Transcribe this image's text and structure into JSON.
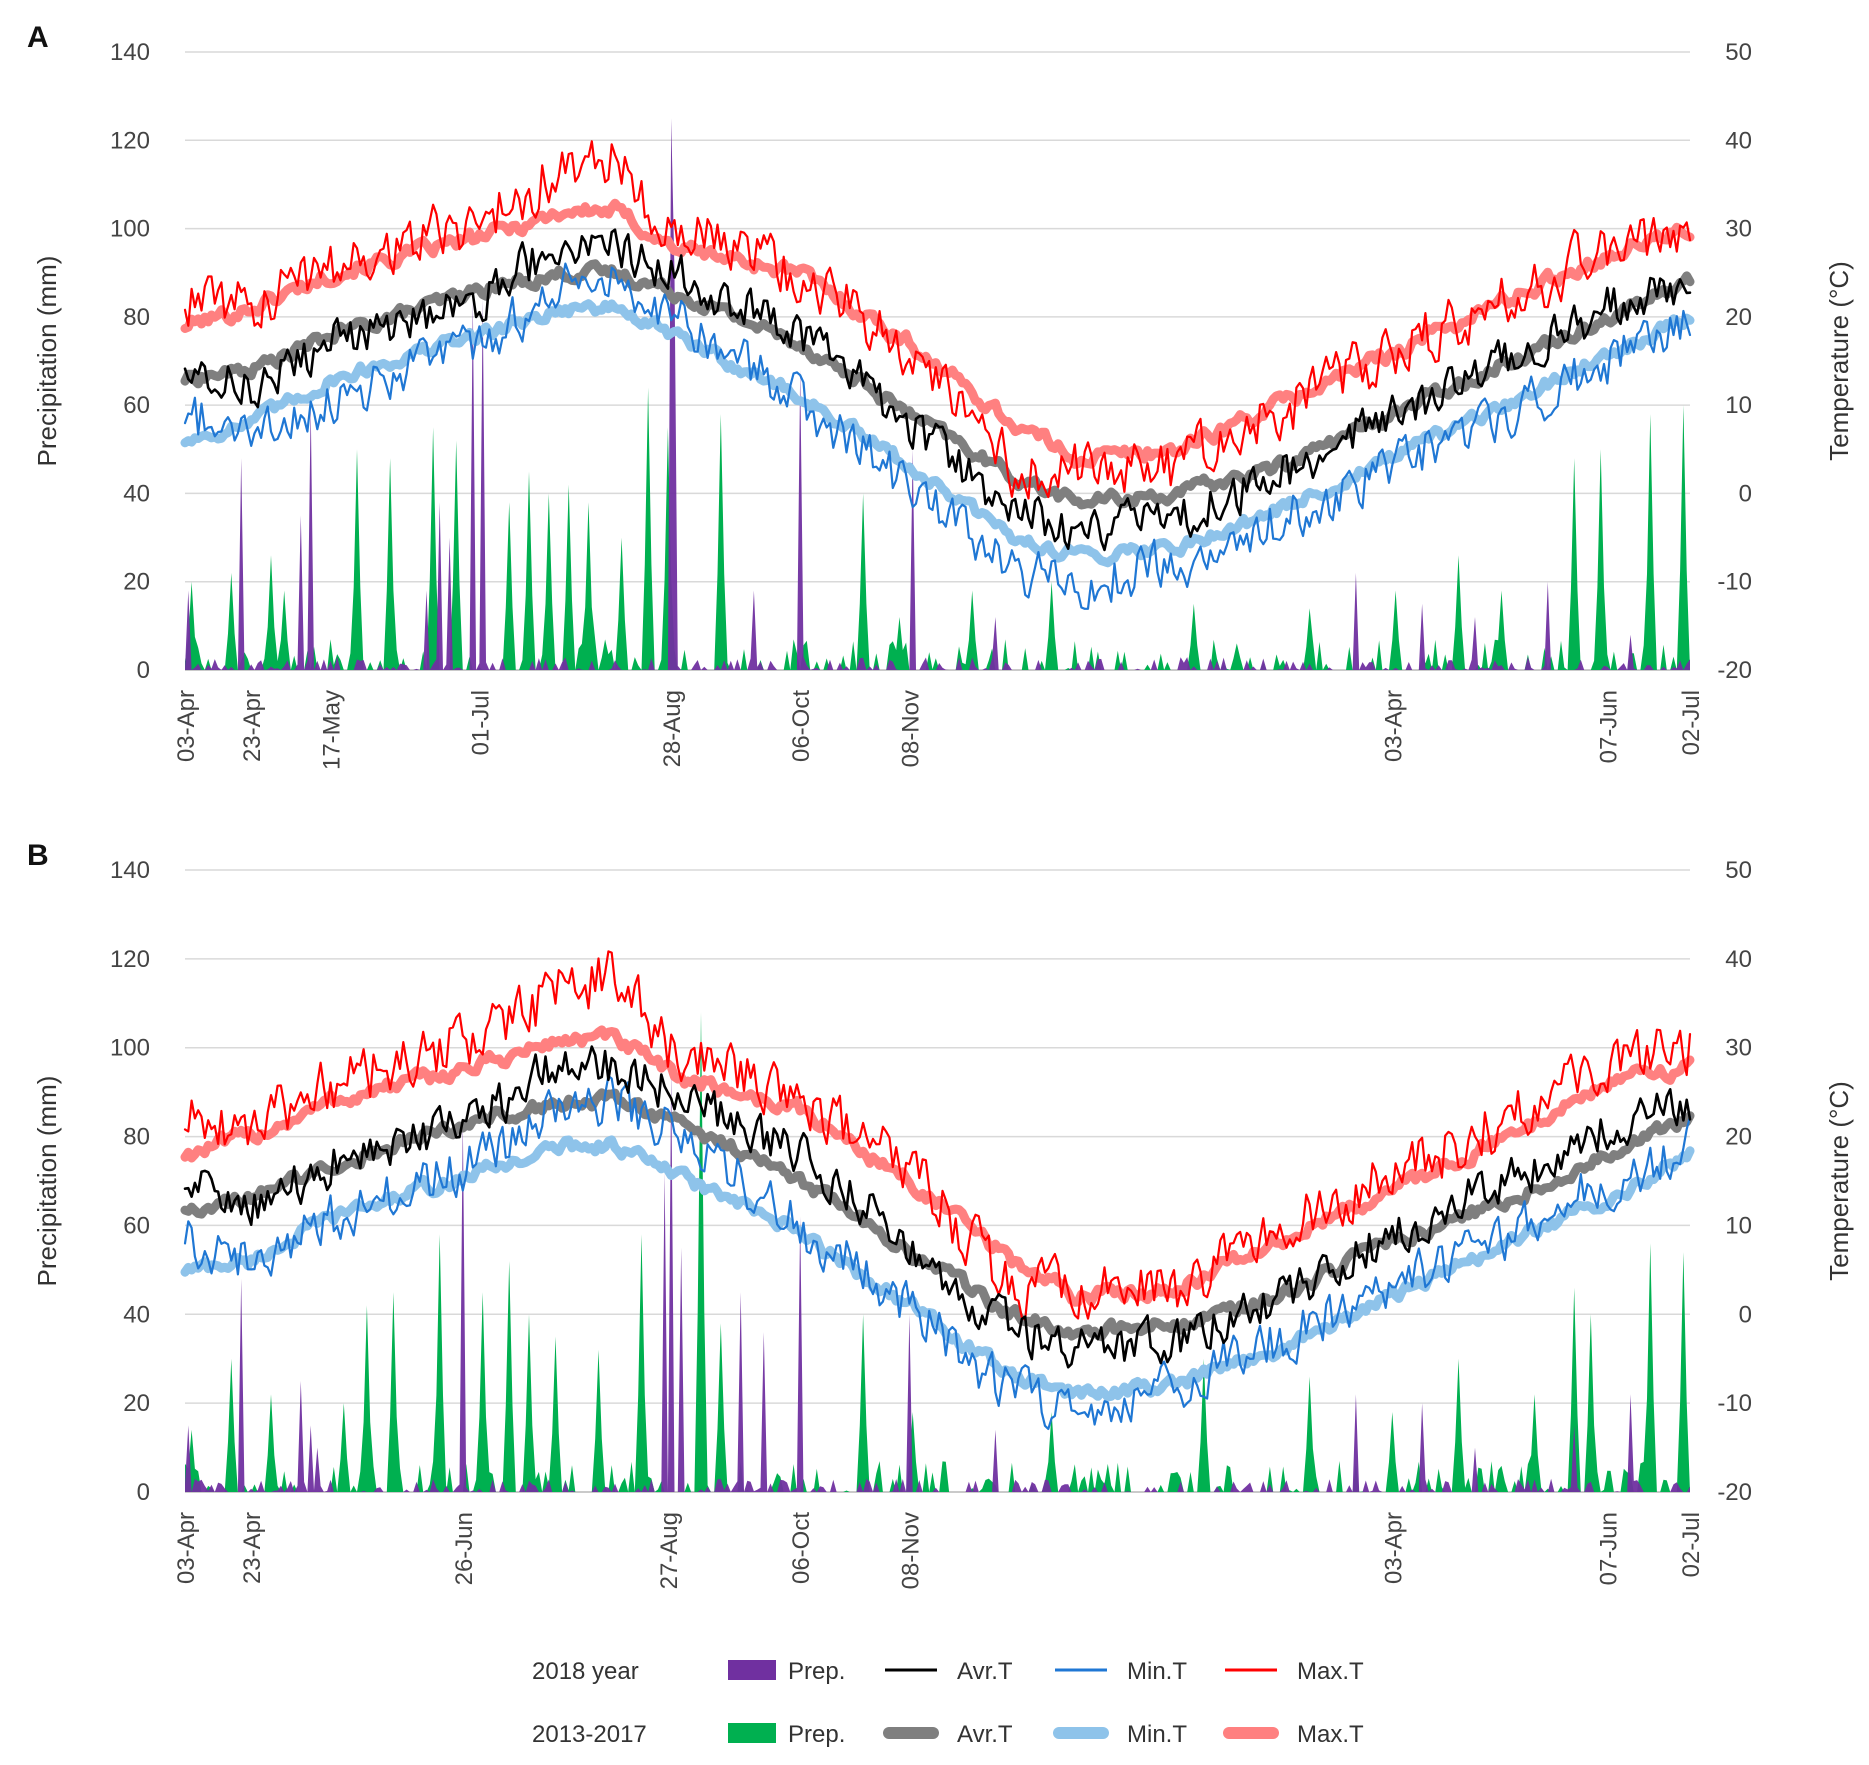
{
  "colors": {
    "prep_2018": "#7030a0",
    "prep_avg": "#00b050",
    "avg_2018": "#000000",
    "avg_avg": "#7f7f7f",
    "min_2018": "#1f77d4",
    "min_avg": "#8ec3ea",
    "max_2018": "#ff0000",
    "max_avg": "#ff8080",
    "grid": "#d9d9d9"
  },
  "legend": {
    "rows": [
      {
        "label": "2018 year",
        "items": [
          {
            "label": "Prep.",
            "key": "prep_2018",
            "kind": "box"
          },
          {
            "label": "Avr.T",
            "key": "avg_2018",
            "kind": "line"
          },
          {
            "label": "Min.T",
            "key": "min_2018",
            "kind": "line"
          },
          {
            "label": "Max.T",
            "key": "max_2018",
            "kind": "line"
          }
        ]
      },
      {
        "label": "2013-2017",
        "items": [
          {
            "label": "Prep.",
            "key": "prep_avg",
            "kind": "box"
          },
          {
            "label": "Avr.T",
            "key": "avg_avg",
            "kind": "thick"
          },
          {
            "label": "Min.T",
            "key": "min_avg",
            "kind": "thick"
          },
          {
            "label": "Max.T",
            "key": "max_avg",
            "kind": "thick"
          }
        ]
      }
    ]
  },
  "chart_data": [
    {
      "panel": "A",
      "type": "line",
      "ylabel": "Precipitation (mm)",
      "y2label": "Temperature (°C)",
      "ylim": [
        0,
        140
      ],
      "y2lim": [
        -20,
        50
      ],
      "yticks": [
        0,
        20,
        40,
        60,
        80,
        100,
        120,
        140
      ],
      "y2ticks": [
        -20,
        -10,
        0,
        10,
        20,
        30,
        40,
        50
      ],
      "grid": true,
      "x_range_days": [
        0,
        455
      ],
      "x_ticks": [
        {
          "label": "03-Apr",
          "day": 0
        },
        {
          "label": "23-Apr",
          "day": 20
        },
        {
          "label": "17-May",
          "day": 44
        },
        {
          "label": "01-Jul",
          "day": 89
        },
        {
          "label": "28-Aug",
          "day": 147
        },
        {
          "label": "06-Oct",
          "day": 186
        },
        {
          "label": "08-Nov",
          "day": 219
        },
        {
          "label": "03-Apr",
          "day": 365
        },
        {
          "label": "07-Jun",
          "day": 430
        },
        {
          "label": "02-Jul",
          "day": 455
        }
      ],
      "temperature": {
        "days": [
          0,
          20,
          45,
          89,
          115,
          130,
          147,
          186,
          219,
          250,
          270,
          300,
          330,
          365,
          400,
          430,
          455
        ],
        "avg_2018": [
          15,
          12,
          17,
          22,
          29,
          28,
          25,
          18,
          8,
          -2,
          -4,
          -3,
          2,
          9,
          15,
          21,
          24
        ],
        "avg_2013_2017": [
          13,
          14,
          18,
          23,
          25,
          25,
          23,
          17,
          9,
          2,
          -1,
          0,
          3,
          9,
          15,
          20,
          24
        ],
        "min_2018": [
          9,
          6,
          11,
          17,
          24,
          24,
          21,
          10,
          1,
          -9,
          -10,
          -8,
          -3,
          3,
          9,
          15,
          19
        ],
        "min_2013_2017": [
          6,
          8,
          13,
          18,
          21,
          21,
          18,
          11,
          3,
          -5,
          -7,
          -6,
          -2,
          4,
          10,
          16,
          20
        ],
        "max_2018": [
          22,
          21,
          26,
          31,
          37,
          38,
          30,
          25,
          16,
          3,
          3,
          3,
          9,
          16,
          22,
          28,
          30
        ],
        "max_2013_2017": [
          19,
          21,
          25,
          29,
          32,
          32,
          28,
          25,
          17,
          8,
          4,
          5,
          10,
          16,
          22,
          27,
          30
        ]
      },
      "precipitation_2018_peaks": [
        {
          "day": 1,
          "value": 18
        },
        {
          "day": 17,
          "value": 48
        },
        {
          "day": 35,
          "value": 35
        },
        {
          "day": 38,
          "value": 60
        },
        {
          "day": 73,
          "value": 18
        },
        {
          "day": 77,
          "value": 38
        },
        {
          "day": 80,
          "value": 30
        },
        {
          "day": 87,
          "value": 84
        },
        {
          "day": 90,
          "value": 84
        },
        {
          "day": 147,
          "value": 125
        },
        {
          "day": 148,
          "value": 90
        },
        {
          "day": 172,
          "value": 18
        },
        {
          "day": 186,
          "value": 68
        },
        {
          "day": 220,
          "value": 50
        },
        {
          "day": 245,
          "value": 12
        },
        {
          "day": 354,
          "value": 22
        },
        {
          "day": 374,
          "value": 15
        },
        {
          "day": 390,
          "value": 12
        },
        {
          "day": 412,
          "value": 20
        },
        {
          "day": 437,
          "value": 8
        }
      ],
      "precipitation_2013_2017_peaks": [
        {
          "day": 2,
          "value": 20
        },
        {
          "day": 14,
          "value": 22
        },
        {
          "day": 26,
          "value": 26
        },
        {
          "day": 30,
          "value": 18
        },
        {
          "day": 52,
          "value": 50
        },
        {
          "day": 62,
          "value": 48
        },
        {
          "day": 75,
          "value": 55
        },
        {
          "day": 82,
          "value": 52
        },
        {
          "day": 98,
          "value": 38
        },
        {
          "day": 104,
          "value": 45
        },
        {
          "day": 110,
          "value": 40
        },
        {
          "day": 116,
          "value": 42
        },
        {
          "day": 122,
          "value": 38
        },
        {
          "day": 132,
          "value": 30
        },
        {
          "day": 140,
          "value": 64
        },
        {
          "day": 146,
          "value": 55
        },
        {
          "day": 162,
          "value": 58
        },
        {
          "day": 205,
          "value": 40
        },
        {
          "day": 216,
          "value": 12
        },
        {
          "day": 238,
          "value": 18
        },
        {
          "day": 262,
          "value": 20
        },
        {
          "day": 305,
          "value": 15
        },
        {
          "day": 340,
          "value": 14
        },
        {
          "day": 366,
          "value": 18
        },
        {
          "day": 385,
          "value": 26
        },
        {
          "day": 398,
          "value": 18
        },
        {
          "day": 420,
          "value": 48
        },
        {
          "day": 428,
          "value": 50
        },
        {
          "day": 443,
          "value": 58
        },
        {
          "day": 453,
          "value": 60
        }
      ]
    },
    {
      "panel": "B",
      "type": "line",
      "ylabel": "Precipitation (mm)",
      "y2label": "Temperature (°C)",
      "ylim": [
        0,
        140
      ],
      "y2lim": [
        -20,
        50
      ],
      "yticks": [
        0,
        20,
        40,
        60,
        80,
        100,
        120,
        140
      ],
      "y2ticks": [
        -20,
        -10,
        0,
        10,
        20,
        30,
        40,
        50
      ],
      "grid": true,
      "x_range_days": [
        0,
        455
      ],
      "x_ticks": [
        {
          "label": "03-Apr",
          "day": 0
        },
        {
          "label": "23-Apr",
          "day": 20
        },
        {
          "label": "26-Jun",
          "day": 84
        },
        {
          "label": "27-Aug",
          "day": 146
        },
        {
          "label": "06-Oct",
          "day": 186
        },
        {
          "label": "08-Nov",
          "day": 219
        },
        {
          "label": "03-Apr",
          "day": 365
        },
        {
          "label": "07-Jun",
          "day": 430
        },
        {
          "label": "02-Jul",
          "day": 455
        }
      ],
      "temperature": {
        "days": [
          0,
          20,
          45,
          89,
          115,
          130,
          147,
          186,
          219,
          250,
          270,
          300,
          330,
          365,
          400,
          430,
          455
        ],
        "avg_2018": [
          15,
          12,
          17,
          22,
          29,
          28,
          25,
          18,
          8,
          -2,
          -4,
          -3,
          2,
          9,
          15,
          21,
          24
        ],
        "avg_2013_2017": [
          12,
          13,
          17,
          22,
          24,
          24,
          22,
          15,
          7,
          0,
          -2,
          -1,
          2,
          8,
          13,
          18,
          22
        ],
        "min_2018": [
          9,
          6,
          11,
          17,
          24,
          24,
          21,
          10,
          1,
          -9,
          -10,
          -8,
          -3,
          3,
          9,
          15,
          19
        ],
        "min_2013_2017": [
          5,
          6,
          11,
          16,
          19,
          19,
          16,
          9,
          1,
          -7,
          -9,
          -8,
          -4,
          2,
          8,
          13,
          18
        ],
        "max_2018": [
          22,
          21,
          26,
          31,
          37,
          38,
          30,
          25,
          16,
          3,
          3,
          3,
          9,
          16,
          22,
          28,
          30
        ],
        "max_2013_2017": [
          18,
          20,
          24,
          28,
          31,
          31,
          27,
          23,
          15,
          6,
          2,
          3,
          8,
          14,
          20,
          26,
          28
        ]
      },
      "precipitation_2018_peaks": [
        {
          "day": 1,
          "value": 15
        },
        {
          "day": 17,
          "value": 48
        },
        {
          "day": 35,
          "value": 25
        },
        {
          "day": 38,
          "value": 15
        },
        {
          "day": 40,
          "value": 10
        },
        {
          "day": 84,
          "value": 84
        },
        {
          "day": 145,
          "value": 72
        },
        {
          "day": 147,
          "value": 95
        },
        {
          "day": 150,
          "value": 55
        },
        {
          "day": 168,
          "value": 45
        },
        {
          "day": 175,
          "value": 36
        },
        {
          "day": 186,
          "value": 62
        },
        {
          "day": 219,
          "value": 40
        },
        {
          "day": 245,
          "value": 14
        },
        {
          "day": 354,
          "value": 22
        },
        {
          "day": 374,
          "value": 20
        },
        {
          "day": 390,
          "value": 10
        },
        {
          "day": 420,
          "value": 15
        },
        {
          "day": 437,
          "value": 22
        }
      ],
      "precipitation_2013_2017_peaks": [
        {
          "day": 2,
          "value": 14
        },
        {
          "day": 14,
          "value": 30
        },
        {
          "day": 26,
          "value": 22
        },
        {
          "day": 48,
          "value": 20
        },
        {
          "day": 55,
          "value": 42
        },
        {
          "day": 63,
          "value": 45
        },
        {
          "day": 77,
          "value": 58
        },
        {
          "day": 90,
          "value": 45
        },
        {
          "day": 98,
          "value": 52
        },
        {
          "day": 104,
          "value": 40
        },
        {
          "day": 112,
          "value": 35
        },
        {
          "day": 125,
          "value": 32
        },
        {
          "day": 138,
          "value": 58
        },
        {
          "day": 156,
          "value": 108
        },
        {
          "day": 162,
          "value": 38
        },
        {
          "day": 205,
          "value": 40
        },
        {
          "day": 220,
          "value": 18
        },
        {
          "day": 262,
          "value": 18
        },
        {
          "day": 308,
          "value": 30
        },
        {
          "day": 340,
          "value": 26
        },
        {
          "day": 365,
          "value": 18
        },
        {
          "day": 385,
          "value": 30
        },
        {
          "day": 408,
          "value": 22
        },
        {
          "day": 420,
          "value": 46
        },
        {
          "day": 425,
          "value": 40
        },
        {
          "day": 443,
          "value": 56
        },
        {
          "day": 453,
          "value": 54
        }
      ]
    }
  ]
}
